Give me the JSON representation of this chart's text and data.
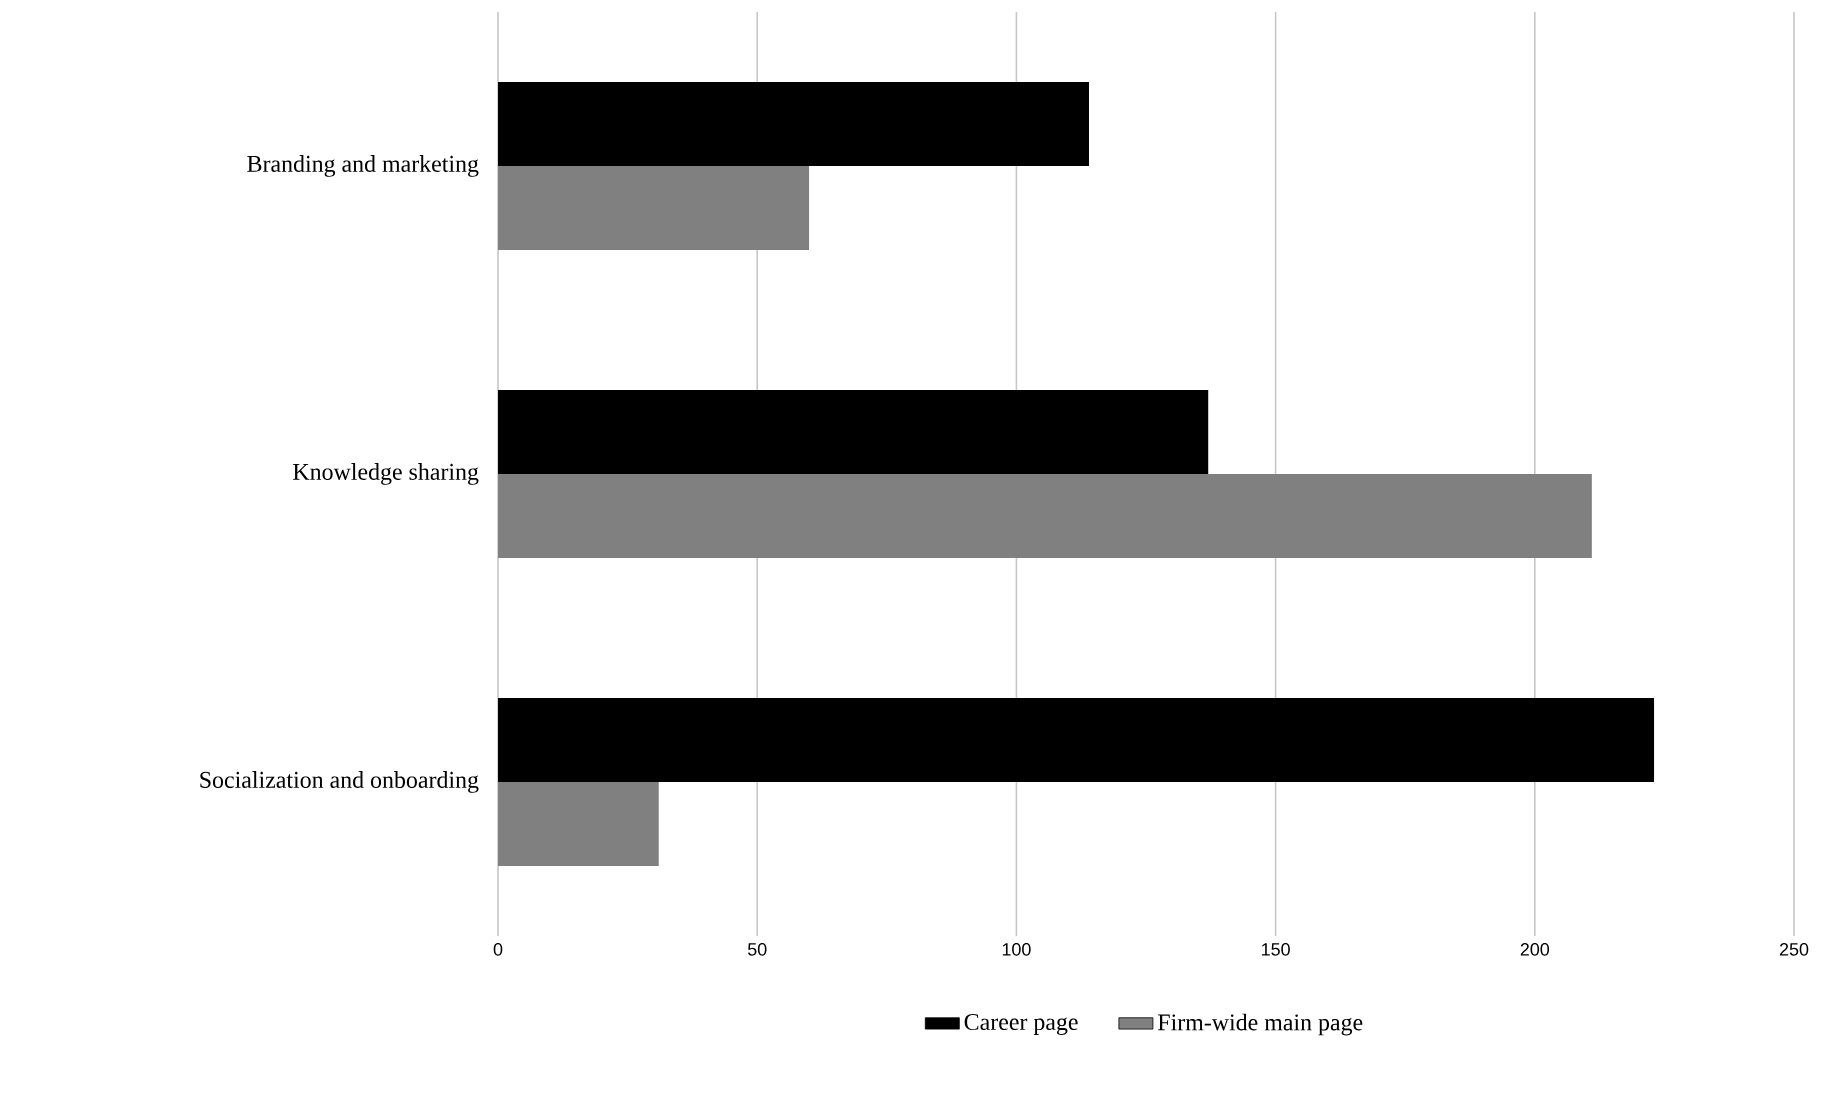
{
  "chart_data": {
    "type": "bar",
    "orientation": "horizontal",
    "categories": [
      "Branding and marketing",
      "Knowledge sharing",
      "Socialization and onboarding"
    ],
    "series": [
      {
        "name": "Career page",
        "color": "#000000",
        "values": [
          114,
          137,
          223
        ]
      },
      {
        "name": "Firm-wide main page",
        "color": "#808080",
        "values": [
          60,
          211,
          31
        ]
      }
    ],
    "xlim": [
      0,
      250
    ],
    "xticks": [
      0,
      50,
      100,
      150,
      200,
      250
    ],
    "grid": "x",
    "legend": "bottom"
  }
}
